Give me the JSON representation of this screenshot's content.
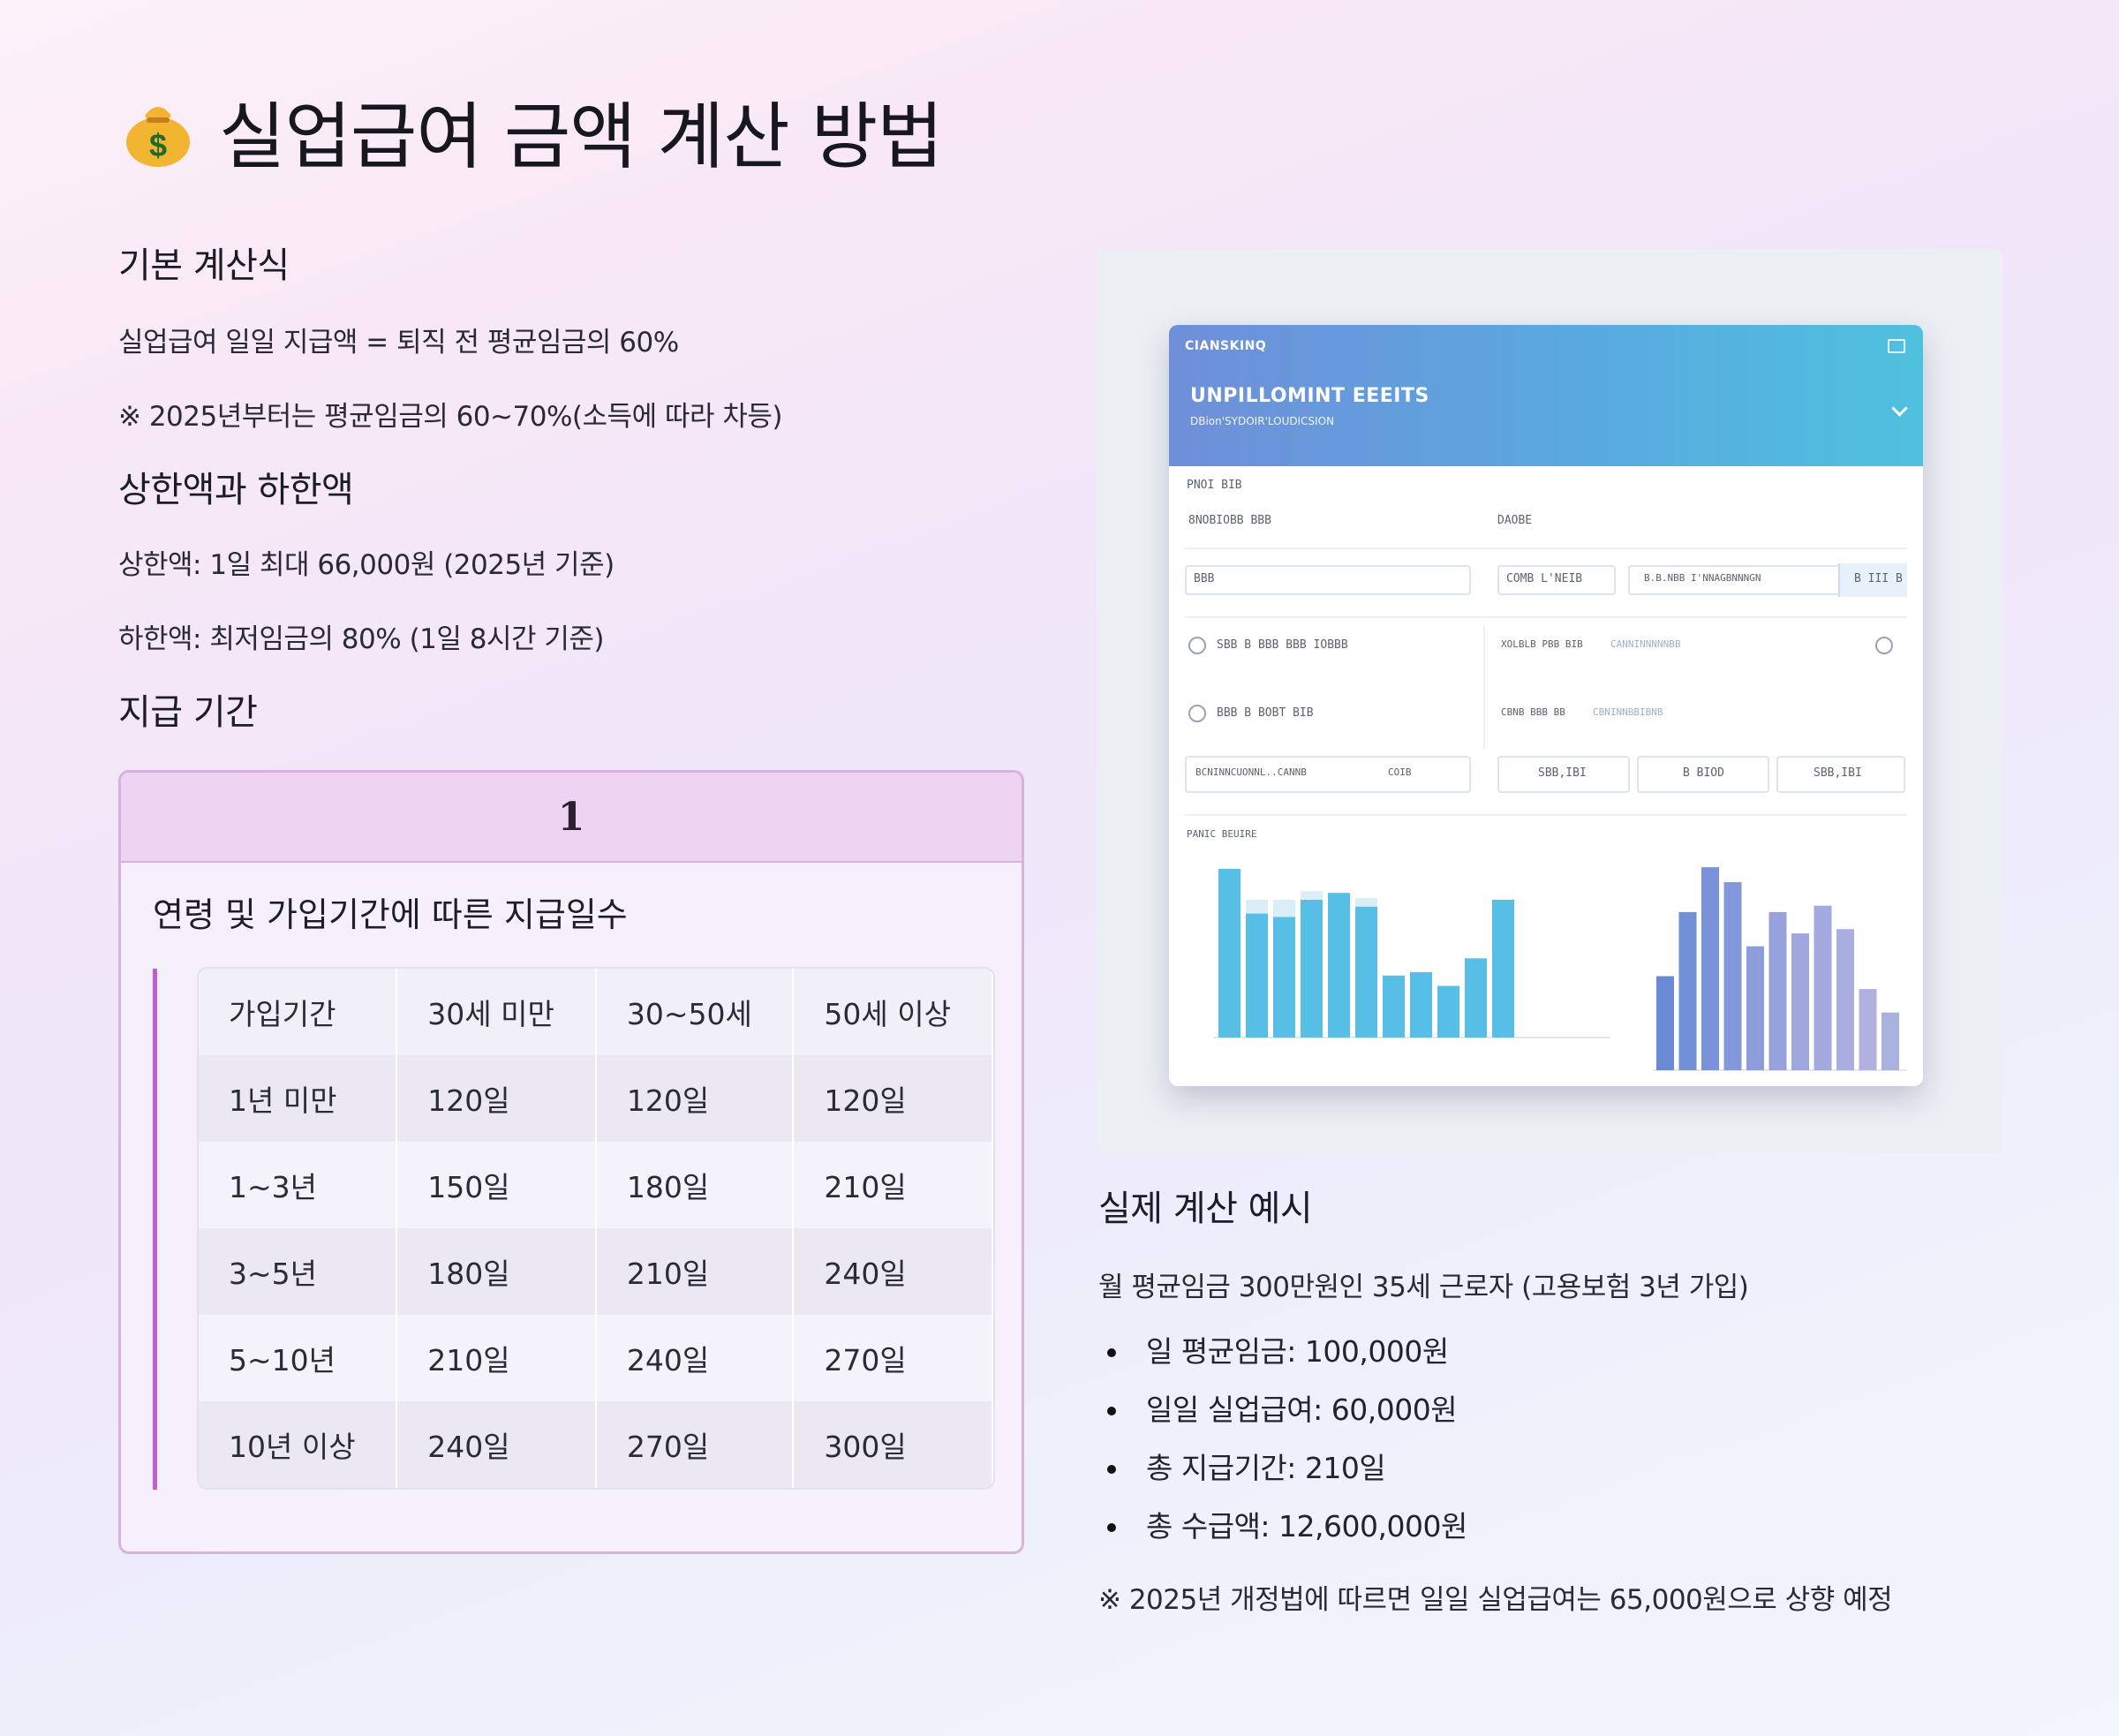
{
  "page": {
    "title": "실업급여 금액 계산 방법",
    "title_icon": "money-bag-icon"
  },
  "left": {
    "basic_heading": "기본 계산식",
    "basic_formula": "실업급여 일일 지급액 = 퇴직 전 평균임금의 60%",
    "basic_note": "※ 2025년부터는 평균임금의 60~70%(소득에 따라 차등)",
    "limits_heading": "상한액과 하한액",
    "upper_limit": "상한액: 1일 최대 66,000원 (2025년 기준)",
    "lower_limit": "하한액: 최저임금의 80% (1일 8시간 기준)",
    "period_heading": "지급 기간"
  },
  "card": {
    "number": "1",
    "subtitle": "연령 및 가입기간에 따른 지급일수",
    "table": {
      "headers": [
        "가입기간",
        "30세 미만",
        "30~50세",
        "50세 이상"
      ],
      "rows": [
        [
          "1년 미만",
          "120일",
          "120일",
          "120일"
        ],
        [
          "1~3년",
          "150일",
          "180일",
          "210일"
        ],
        [
          "3~5년",
          "180일",
          "210일",
          "240일"
        ],
        [
          "5~10년",
          "210일",
          "240일",
          "270일"
        ],
        [
          "10년 이상",
          "240일",
          "270일",
          "300일"
        ]
      ]
    }
  },
  "screenshot": {
    "top_label": "CIANSKINQ",
    "title": "UNPILLOMINT EEEITS",
    "subtitle": "DBion'SYDOIR'LOUDICSION",
    "section_label": "PNOI BIB",
    "field_a": "8NOBIOBB BBB",
    "field_b": "DAOBE",
    "input_a": "BBB",
    "input_b": "COMB L'NEIB",
    "input_c": "B.B.NBB I'NNAGBNNNGN",
    "button": "B III B",
    "row1_left": "SBB B BBB BBB IOBBB",
    "row1_right": "XOLBLB PBB BIB",
    "row1_right_hint": "CANNINNNNNBB",
    "row2_left": "BBB B BOBT BIB",
    "row2_right": "CBNB BBB BB",
    "row2_right_hint": "CBNINNBBIBNB",
    "cell_1": "BCNINNCUONNL..CANNB",
    "cell_1b": "COIB",
    "cell_2": "SBB,IBI",
    "cell_3": "B BIOD",
    "cell_4": "SBB,IBI",
    "chart_label": "PANIC BEUIRE",
    "chart_left_bars": [
      0.98,
      0.72,
      0.7,
      0.8,
      0.84,
      0.76,
      0.36,
      0.38,
      0.3,
      0.46,
      0.8
    ],
    "chart_left_pale": [
      0,
      0.08,
      0.1,
      0.05,
      0,
      0.05,
      0,
      0,
      0,
      0,
      0
    ],
    "chart_right_bars": [
      0.44,
      0.74,
      0.95,
      0.88,
      0.58,
      0.74,
      0.64,
      0.77,
      0.66,
      0.38,
      0.27
    ],
    "chart_right_colors": [
      "#6b8ad6",
      "#7190d8",
      "#7a92d9",
      "#8497da",
      "#8f9cdb",
      "#97a1dc",
      "#9ea6dd",
      "#a4a9de",
      "#aaaddf",
      "#b0b1e0",
      "#a9b2df"
    ]
  },
  "right": {
    "example_heading": "실제 계산 예시",
    "example_intro": "월 평균임금 300만원인 35세 근로자 (고용보험 3년 가입)",
    "items": [
      "일 평균임금: 100,000원",
      "일일 실업급여: 60,000원",
      "총 지급기간: 210일",
      "총 수급액: 12,600,000원"
    ],
    "example_note": "※ 2025년 개정법에 따르면 일일 실업급여는 65,000원으로 상향 예정"
  },
  "colors": {
    "accent": "#c35fd0",
    "card_header": "#eed3f3",
    "card_border": "#d6b3dd",
    "chart_blue": "#57bfe6",
    "header_gradient_start": "#6f8fd8",
    "header_gradient_end": "#4fc1de"
  }
}
